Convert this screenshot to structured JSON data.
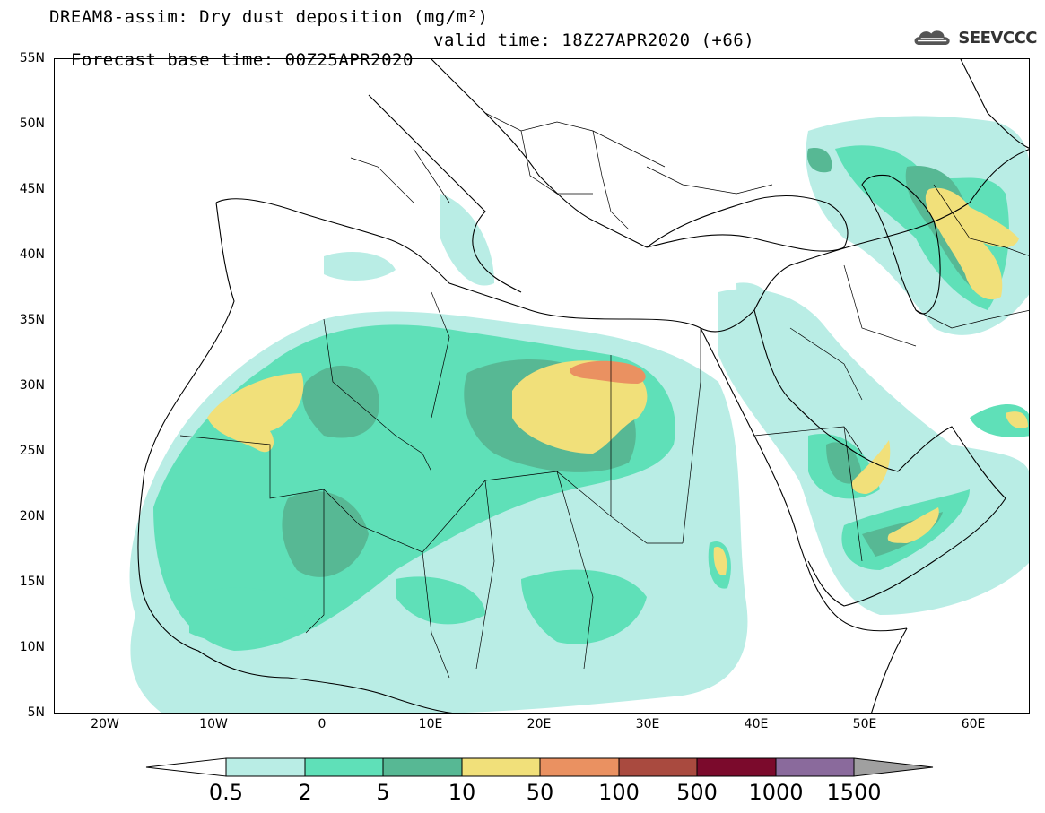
{
  "header": {
    "title_line1": "DREAM8-assim: Dry dust deposition (mg/m²)",
    "base_time": "Forecast base time: 00Z25APR2020",
    "valid_time": "valid time: 18Z27APR2020 (+66)",
    "logo_text": "SEEVCCC"
  },
  "map": {
    "lon_range": [
      -25,
      65
    ],
    "lat_range": [
      5,
      55
    ],
    "lat_ticks": [
      {
        "value": 55,
        "label": "55N"
      },
      {
        "value": 50,
        "label": "50N"
      },
      {
        "value": 45,
        "label": "45N"
      },
      {
        "value": 40,
        "label": "40N"
      },
      {
        "value": 35,
        "label": "35N"
      },
      {
        "value": 30,
        "label": "30N"
      },
      {
        "value": 25,
        "label": "25N"
      },
      {
        "value": 20,
        "label": "20N"
      },
      {
        "value": 15,
        "label": "15N"
      },
      {
        "value": 10,
        "label": "10N"
      },
      {
        "value": 5,
        "label": "5N"
      }
    ],
    "lon_ticks": [
      {
        "value": -20,
        "label": "20W"
      },
      {
        "value": -10,
        "label": "10W"
      },
      {
        "value": 0,
        "label": "0"
      },
      {
        "value": 10,
        "label": "10E"
      },
      {
        "value": 20,
        "label": "20E"
      },
      {
        "value": 30,
        "label": "30E"
      },
      {
        "value": 40,
        "label": "40E"
      },
      {
        "value": 50,
        "label": "50E"
      },
      {
        "value": 60,
        "label": "60E"
      }
    ]
  },
  "legend": {
    "levels": [
      "0.5",
      "2",
      "5",
      "10",
      "50",
      "100",
      "500",
      "1000",
      "1500"
    ],
    "colors": [
      "#ffffff",
      "#b9ede5",
      "#5fe0b8",
      "#57b894",
      "#f1e07a",
      "#ea9161",
      "#a94a3f",
      "#7b0a2c",
      "#8a6a9c",
      "#a0a0a0"
    ]
  }
}
